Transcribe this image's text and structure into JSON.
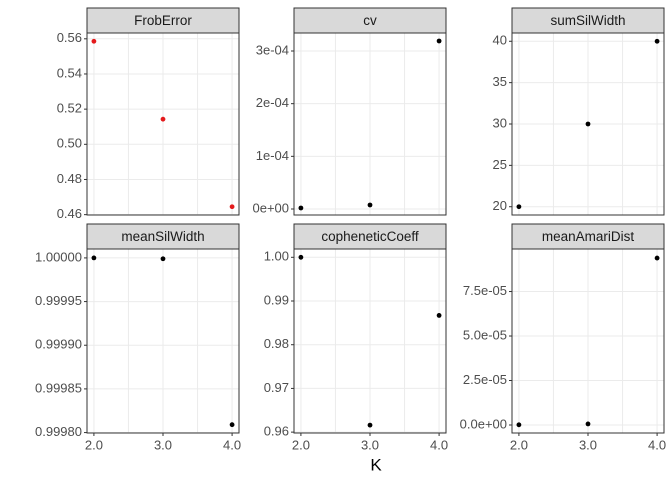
{
  "x_label": "K",
  "chart_data": [
    {
      "type": "scatter",
      "title": "FrobError",
      "color": "#e41a1c",
      "x": [
        2,
        3,
        4
      ],
      "values": [
        0.5586,
        0.5143,
        0.4645
      ],
      "xlim": [
        1.9,
        4.1
      ],
      "xticks": [
        2,
        2.5,
        3,
        3.5,
        4
      ],
      "ylim": [
        0.4598,
        0.5633
      ],
      "yticks": [
        0.46,
        0.48,
        {
          "value": 0.5,
          "label": "0.50"
        },
        0.52,
        0.54,
        0.56
      ],
      "grid": true
    },
    {
      "type": "scatter",
      "title": "cv",
      "color": "#000000",
      "x": [
        2,
        3,
        4
      ],
      "values": [
        1.9e-06,
        7.6e-06,
        0.000319
      ],
      "xlim": [
        1.9,
        4.1
      ],
      "xticks": [
        2,
        2.5,
        3,
        3.5,
        4
      ],
      "ylim": [
        -1.14e-05,
        0.0003342
      ],
      "yticks": [
        {
          "value": 0,
          "label": "0e+00"
        },
        {
          "value": 0.0001,
          "label": "1e-04"
        },
        {
          "value": 0.0002,
          "label": "2e-04"
        },
        {
          "value": 0.0003,
          "label": "3e-04"
        }
      ],
      "grid": true
    },
    {
      "type": "scatter",
      "title": "sumSilWidth",
      "color": "#000000",
      "x": [
        2,
        3,
        4
      ],
      "values": [
        20,
        30,
        40
      ],
      "xlim": [
        1.9,
        4.1
      ],
      "xticks": [
        2,
        2.5,
        3,
        3.5,
        4
      ],
      "ylim": [
        19,
        41
      ],
      "yticks": [
        20,
        25,
        30,
        35,
        40
      ],
      "grid": true
    },
    {
      "type": "scatter",
      "title": "meanSilWidth",
      "color": "#000000",
      "x": [
        2,
        3,
        4
      ],
      "values": [
        1.0,
        0.999999,
        0.999809
      ],
      "xlim": [
        1.9,
        4.1
      ],
      "xticks": [
        {
          "value": 2,
          "label": "2.0"
        },
        2.5,
        {
          "value": 3,
          "label": "3.0"
        },
        3.5,
        {
          "value": 4,
          "label": "4.0"
        }
      ],
      "ylim": [
        0.9997995,
        1.0000102
      ],
      "yticks": [
        {
          "value": 0.9998,
          "label": "0.99980"
        },
        0.99985,
        {
          "value": 0.9999,
          "label": "0.99990"
        },
        0.99995,
        {
          "value": 1.0,
          "label": "1.00000"
        }
      ],
      "grid": true
    },
    {
      "type": "scatter",
      "title": "copheneticCoeff",
      "color": "#000000",
      "x": [
        2,
        3,
        4
      ],
      "values": [
        1.0,
        0.9616,
        0.9867
      ],
      "xlim": [
        1.9,
        4.1
      ],
      "xticks": [
        {
          "value": 2,
          "label": "2.0"
        },
        2.5,
        {
          "value": 3,
          "label": "3.0"
        },
        3.5,
        {
          "value": 4,
          "label": "4.0"
        }
      ],
      "ylim": [
        0.9598,
        1.0019
      ],
      "yticks": [
        0.96,
        0.97,
        0.98,
        0.99,
        {
          "value": 1.0,
          "label": "1.00"
        }
      ],
      "grid": true
    },
    {
      "type": "scatter",
      "title": "meanAmariDist",
      "color": "#000000",
      "x": [
        2,
        3,
        4
      ],
      "values": [
        1e-07,
        6e-07,
        9.38e-05
      ],
      "xlim": [
        1.9,
        4.1
      ],
      "xticks": [
        {
          "value": 2,
          "label": "2.0"
        },
        2.5,
        {
          "value": 3,
          "label": "3.0"
        },
        3.5,
        {
          "value": 4,
          "label": "4.0"
        }
      ],
      "ylim": [
        -4.5e-06,
        9.89e-05
      ],
      "yticks": [
        {
          "value": 0,
          "label": "0.0e+00"
        },
        {
          "value": 2.5e-05,
          "label": "2.5e-05"
        },
        {
          "value": 5e-05,
          "label": "5.0e-05"
        },
        {
          "value": 7.5e-05,
          "label": "7.5e-05"
        }
      ],
      "grid": true
    }
  ]
}
